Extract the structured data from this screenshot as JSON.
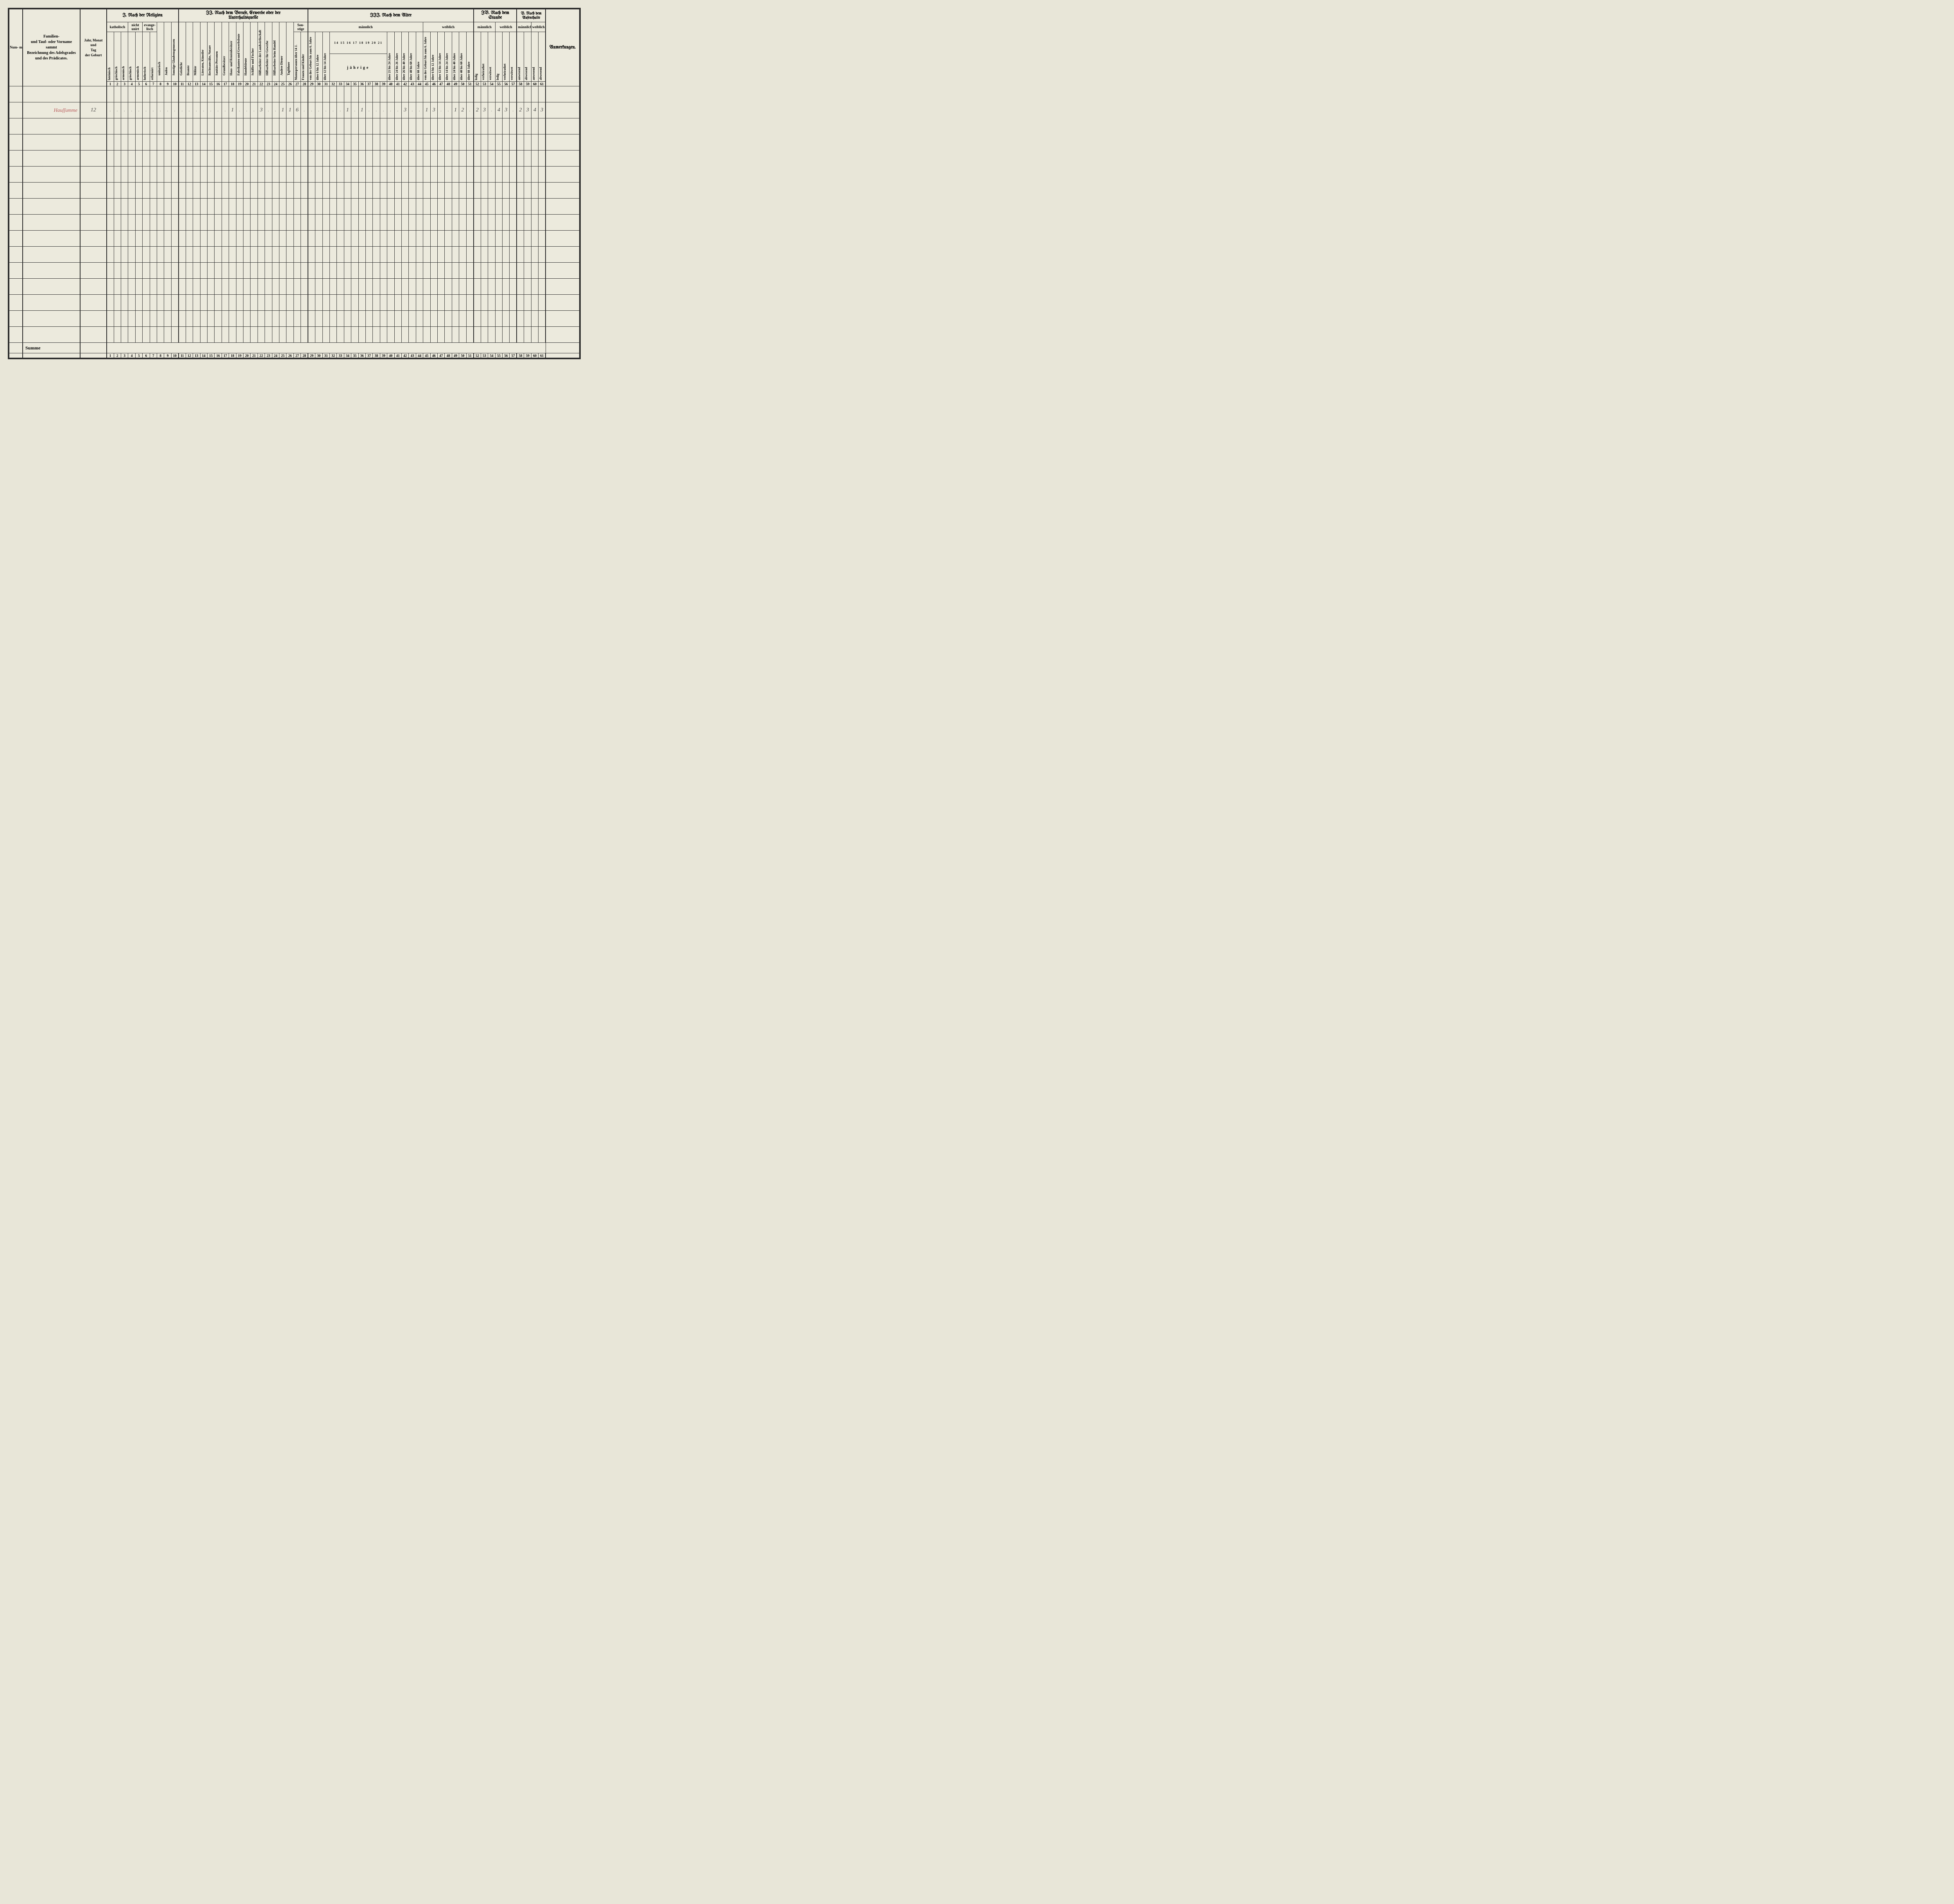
{
  "header": {
    "col_nummer": "Num-\nmer\nder\nWoh-\nnung",
    "col_name": "Familien-\nund Tauf- oder Vorname\nsammt\nBezeichnung des Adelsgrades\nund des Prädicates.",
    "col_geburt": "Jahr, Monat\nund\nTag\nder Geburt",
    "section_I": "I. Nach der Religion",
    "section_II": "II. Nach dem Berufe, Erwerbe oder der\nUnterhaltsquelle",
    "section_III": "III. Nach dem Alter",
    "section_IV": "IV. Nach dem Stande",
    "section_V": "V. Nach dem\nAufenthalte",
    "col_anm": "Anmerkungen.",
    "rel": {
      "katholisch": "katholisch",
      "nicht_unirt": "nicht\nunirt",
      "evangelisch": "evange-\nlisch",
      "c1": "lateinisch",
      "c2": "griechisch",
      "c3": "armenisch",
      "c4": "griechisch",
      "c5": "armenisch",
      "c6": "lutherisch",
      "c7": "reformirt",
      "c8": "unitarisch",
      "c9": "Juden",
      "c10": "Sonstige Glaubensgenossen"
    },
    "beruf": {
      "c11": "Geistliche",
      "c12": "Beamte",
      "c13": "Militär",
      "c14": "Literaten, Künstler",
      "c15": "Rechtsanwälte, Notare",
      "c16": "Sanitäts-Personen",
      "c17": "Grundbesitzer",
      "c18": "Haus- und Rentenbesitzer",
      "c19": "Fabrikanten und Gewerbsleute",
      "c20": "Handelsleute",
      "c21": "Schiffer und Fischer",
      "c22": "Hilfsarbeiter der Landwirthschaft",
      "c23": "Hilfsarbeiter für Gewerbe",
      "c24": "Hilfsarbeiter beim Handel",
      "c25": "Andere Diener",
      "c26": "Taglöhner",
      "sonstige": "Son-\nstige",
      "c27": "Mannspersonen über 14 J.",
      "c28": "Frauen und Kinder"
    },
    "alter": {
      "maennlich": "männlich",
      "weiblich": "weiblich",
      "c29": "von der Geburt bis zum 6. Jahre",
      "c30": "über 6 bis 12 Jahre",
      "c31": "über 12 bis 14 Jahre",
      "jaehrige_nums": "14 15 16 17 18 19 20 21",
      "jaehrige": "jährige",
      "c40": "über 21 bis 24 Jahre",
      "c41": "über 24 bis 26 Jahre",
      "c42": "über 26 bis 40 Jahre",
      "c43": "über 40 bis 60 Jahre",
      "c44": "über 60 Jahre",
      "c45": "von der Geburt bis zum 6. Jahre",
      "c46": "über 6 bis 12 Jahre",
      "c47": "über 12 bis 14 Jahre",
      "c48": "über 14 bis 24 Jahre",
      "c49": "über 24 bis 40 Jahre",
      "c50": "über 40 bis 60 Jahre",
      "c51": "über 60 Jahre"
    },
    "stand": {
      "maennlich": "männlich",
      "weiblich": "weiblich",
      "c52": "ledig",
      "c53": "verheirathet",
      "c54": "verwitwet",
      "c55": "ledig",
      "c56": "verheirathet",
      "c57": "verwitwet"
    },
    "aufenthalt": {
      "maennlich": "männlich",
      "weiblich": "weiblich",
      "c58": "anwesend",
      "c59": "abwesend",
      "c60": "anwesend",
      "c61": "abwesend"
    }
  },
  "colnums": [
    "1",
    "2",
    "3",
    "4",
    "5",
    "6",
    "7",
    "8",
    "9",
    "10",
    "11",
    "12",
    "13",
    "14",
    "15",
    "16",
    "17",
    "18",
    "19",
    "20",
    "21",
    "22",
    "23",
    "24",
    "25",
    "26",
    "27",
    "28",
    "29",
    "30",
    "31",
    "32",
    "33",
    "34",
    "35",
    "36",
    "37",
    "38",
    "39",
    "40",
    "41",
    "42",
    "43",
    "44",
    "45",
    "46",
    "47",
    "48",
    "49",
    "50",
    "51",
    "52",
    "53",
    "54",
    "55",
    "56",
    "57",
    "58",
    "59",
    "60",
    "61"
  ],
  "row1": {
    "name": "Hauſſumme",
    "geburt": "12",
    "cells": {
      "18": "1",
      "22": "3",
      "25": "1",
      "26": "1",
      "27": "6",
      "34": "1",
      "36": "1",
      "42": "3",
      "45": "1",
      "46": "3",
      "49": "1",
      "50": "2",
      "52": "2",
      "53": "3",
      "55": "4",
      "56": "3",
      "58": "2",
      "59": "3",
      "60": "4",
      "61": "3"
    }
  },
  "summe_label": "Summe",
  "colors": {
    "paper": "#eceadd",
    "ink": "#2a2a2a",
    "red_ink": "#b85a5a"
  }
}
